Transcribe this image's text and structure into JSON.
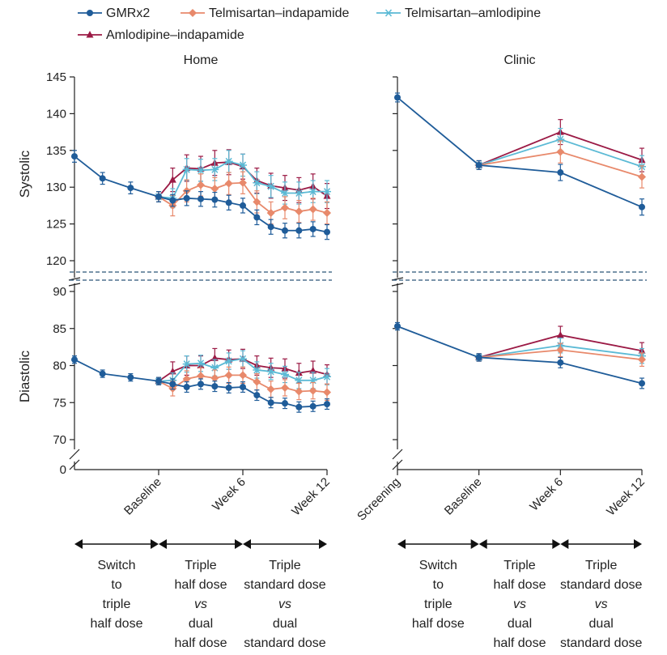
{
  "chart_data": {
    "type": "line",
    "series_defs": [
      {
        "name": "GMRx2",
        "color": "#1f5c99",
        "marker": "circle"
      },
      {
        "name": "Telmisartan–indapamide",
        "color": "#e8896b",
        "marker": "diamond"
      },
      {
        "name": "Telmisartan–amlodipine",
        "color": "#5bbad5",
        "marker": "star"
      },
      {
        "name": "Amlodipine–indapamide",
        "color": "#9b1a45",
        "marker": "triangle"
      }
    ],
    "panels": [
      {
        "id": "home",
        "title": "Home",
        "x_range": [
          -6,
          12
        ],
        "x_ticks": [
          {
            "x": 0,
            "label": "Baseline"
          },
          {
            "x": 6,
            "label": "Week 6"
          },
          {
            "x": 12,
            "label": "Week 12"
          }
        ],
        "systolic": {
          "ylabel": "Systolic",
          "yticks": [
            120,
            125,
            130,
            135,
            140,
            145
          ],
          "ylim": [
            118.5,
            145
          ],
          "series": [
            {
              "name": "GMRx2",
              "x": [
                -6,
                -4,
                -2,
                0,
                1,
                2,
                3,
                4,
                5,
                6,
                7,
                8,
                9,
                10,
                11,
                12
              ],
              "y": [
                134.2,
                131.2,
                129.9,
                128.7,
                128.2,
                128.5,
                128.4,
                128.3,
                127.9,
                127.5,
                125.9,
                124.6,
                124.1,
                124.1,
                124.3,
                123.9
              ],
              "err": [
                0.8,
                0.8,
                0.8,
                0.7,
                0.8,
                1.0,
                1.0,
                1.0,
                1.0,
                1.0,
                1.0,
                1.0,
                1.0,
                1.0,
                1.0,
                1.0
              ]
            },
            {
              "name": "Telmisartan–indapamide",
              "x": [
                0,
                1,
                2,
                3,
                4,
                5,
                6,
                7,
                8,
                9,
                10,
                11,
                12
              ],
              "y": [
                128.7,
                127.5,
                129.5,
                130.3,
                129.8,
                130.5,
                130.6,
                128.0,
                126.5,
                127.2,
                126.7,
                127.0,
                126.5
              ],
              "err": [
                0.7,
                1.4,
                1.5,
                1.5,
                1.5,
                1.5,
                1.5,
                1.5,
                1.5,
                1.5,
                1.5,
                1.5,
                1.5
              ]
            },
            {
              "name": "Telmisartan–amlodipine",
              "x": [
                0,
                1,
                2,
                3,
                4,
                5,
                6,
                7,
                8,
                9,
                10,
                11,
                12
              ],
              "y": [
                128.7,
                128.5,
                132.4,
                132.3,
                132.4,
                133.5,
                133.0,
                130.6,
                130.1,
                129.2,
                129.2,
                129.4,
                129.4
              ],
              "err": [
                0.7,
                1.3,
                1.5,
                1.5,
                1.5,
                1.5,
                1.5,
                1.5,
                1.5,
                1.5,
                1.5,
                1.5,
                1.5
              ]
            },
            {
              "name": "Amlodipine–indapamide",
              "x": [
                0,
                1,
                2,
                3,
                4,
                5,
                6,
                7,
                8,
                9,
                10,
                11,
                12
              ],
              "y": [
                128.7,
                131.0,
                132.6,
                132.5,
                133.3,
                133.4,
                132.8,
                130.9,
                130.2,
                129.9,
                129.6,
                130.1,
                128.8
              ],
              "err": [
                0.7,
                1.6,
                1.8,
                1.7,
                1.7,
                1.7,
                1.7,
                1.7,
                1.7,
                1.7,
                1.7,
                1.7,
                1.7
              ]
            }
          ]
        },
        "diastolic": {
          "ylabel": "Diastolic",
          "yticks": [
            70,
            75,
            80,
            85,
            90
          ],
          "ylim": [
            67,
            92
          ],
          "zero_label": "0",
          "series": [
            {
              "name": "GMRx2",
              "x": [
                -6,
                -4,
                -2,
                0,
                1,
                2,
                3,
                4,
                5,
                6,
                7,
                8,
                9,
                10,
                11,
                12
              ],
              "y": [
                80.8,
                78.9,
                78.4,
                77.9,
                77.5,
                77.1,
                77.5,
                77.2,
                77.0,
                77.1,
                76.0,
                75.0,
                74.9,
                74.4,
                74.5,
                74.8
              ],
              "err": [
                0.5,
                0.5,
                0.5,
                0.5,
                0.7,
                0.7,
                0.7,
                0.7,
                0.7,
                0.7,
                0.7,
                0.7,
                0.7,
                0.7,
                0.7,
                0.7
              ]
            },
            {
              "name": "Telmisartan–indapamide",
              "x": [
                0,
                1,
                2,
                3,
                4,
                5,
                6,
                7,
                8,
                9,
                10,
                11,
                12
              ],
              "y": [
                77.9,
                76.9,
                78.2,
                78.6,
                78.3,
                78.7,
                78.7,
                77.8,
                76.8,
                77.0,
                76.5,
                76.6,
                76.4
              ],
              "err": [
                0.5,
                1.0,
                1.1,
                1.1,
                1.1,
                1.1,
                1.1,
                1.1,
                1.1,
                1.1,
                1.1,
                1.1,
                1.1
              ]
            },
            {
              "name": "Telmisartan–amlodipine",
              "x": [
                0,
                1,
                2,
                3,
                4,
                5,
                6,
                7,
                8,
                9,
                10,
                11,
                12
              ],
              "y": [
                77.9,
                78.0,
                80.2,
                80.3,
                79.7,
                80.6,
                80.9,
                79.4,
                79.2,
                78.8,
                78.0,
                78.0,
                78.5
              ],
              "err": [
                0.5,
                1.0,
                1.1,
                1.1,
                1.1,
                1.1,
                1.1,
                1.1,
                1.1,
                1.1,
                1.1,
                1.1,
                1.1
              ]
            },
            {
              "name": "Amlodipine–indapamide",
              "x": [
                0,
                1,
                2,
                3,
                4,
                5,
                6,
                7,
                8,
                9,
                10,
                11,
                12
              ],
              "y": [
                77.9,
                79.2,
                80.0,
                80.0,
                81.0,
                80.8,
                80.9,
                80.0,
                79.7,
                79.6,
                79.0,
                79.3,
                78.8
              ],
              "err": [
                0.5,
                1.3,
                1.3,
                1.3,
                1.3,
                1.3,
                1.3,
                1.3,
                1.3,
                1.3,
                1.3,
                1.3,
                1.3
              ]
            }
          ]
        },
        "periods": [
          {
            "from": -6,
            "to": 0,
            "lines": [
              "Switch",
              "to",
              "triple",
              "half dose"
            ]
          },
          {
            "from": 0,
            "to": 6,
            "lines": [
              "Triple",
              "half dose",
              "vs",
              "dual",
              "half dose"
            ]
          },
          {
            "from": 6,
            "to": 12,
            "lines": [
              "Triple",
              "standard dose",
              "vs",
              "dual",
              "standard dose"
            ]
          }
        ]
      },
      {
        "id": "clinic",
        "title": "Clinic",
        "x_range": [
          -6,
          12
        ],
        "x_ticks": [
          {
            "x": -6,
            "label": "Screening"
          },
          {
            "x": 0,
            "label": "Baseline"
          },
          {
            "x": 6,
            "label": "Week 6"
          },
          {
            "x": 12,
            "label": "Week 12"
          }
        ],
        "systolic": {
          "ylim": [
            118.5,
            145
          ],
          "series": [
            {
              "name": "GMRx2",
              "x": [
                -6,
                0,
                6,
                12
              ],
              "y": [
                142.2,
                133.0,
                132.0,
                127.3
              ],
              "err": [
                0.6,
                0.6,
                1.1,
                1.1
              ]
            },
            {
              "name": "Telmisartan–indapamide",
              "x": [
                0,
                6,
                12
              ],
              "y": [
                133.0,
                134.8,
                131.4
              ],
              "err": [
                0.6,
                1.5,
                1.5
              ]
            },
            {
              "name": "Telmisartan–amlodipine",
              "x": [
                0,
                6,
                12
              ],
              "y": [
                133.0,
                136.5,
                132.8
              ],
              "err": [
                0.6,
                1.5,
                1.5
              ]
            },
            {
              "name": "Amlodipine–indapamide",
              "x": [
                0,
                6,
                12
              ],
              "y": [
                133.0,
                137.5,
                133.7
              ],
              "err": [
                0.6,
                1.7,
                1.6
              ]
            }
          ]
        },
        "diastolic": {
          "ylim": [
            67,
            92
          ],
          "series": [
            {
              "name": "GMRx2",
              "x": [
                -6,
                0,
                6,
                12
              ],
              "y": [
                85.3,
                81.1,
                80.4,
                77.6
              ],
              "err": [
                0.5,
                0.5,
                0.7,
                0.7
              ]
            },
            {
              "name": "Telmisartan–indapamide",
              "x": [
                0,
                6,
                12
              ],
              "y": [
                81.1,
                82.1,
                80.8
              ],
              "err": [
                0.5,
                0.9,
                0.9
              ]
            },
            {
              "name": "Telmisartan–amlodipine",
              "x": [
                0,
                6,
                12
              ],
              "y": [
                81.1,
                82.7,
                81.3
              ],
              "err": [
                0.5,
                1.0,
                1.0
              ]
            },
            {
              "name": "Amlodipine–indapamide",
              "x": [
                0,
                6,
                12
              ],
              "y": [
                81.1,
                84.1,
                82.0
              ],
              "err": [
                0.5,
                1.2,
                1.1
              ]
            }
          ]
        },
        "periods": [
          {
            "from": -6,
            "to": 0,
            "lines": [
              "Switch",
              "to",
              "triple",
              "half dose"
            ]
          },
          {
            "from": 0,
            "to": 6,
            "lines": [
              "Triple",
              "half dose",
              "vs",
              "dual",
              "half dose"
            ]
          },
          {
            "from": 6,
            "to": 12,
            "lines": [
              "Triple",
              "standard dose",
              "vs",
              "dual",
              "standard dose"
            ]
          }
        ]
      }
    ]
  }
}
